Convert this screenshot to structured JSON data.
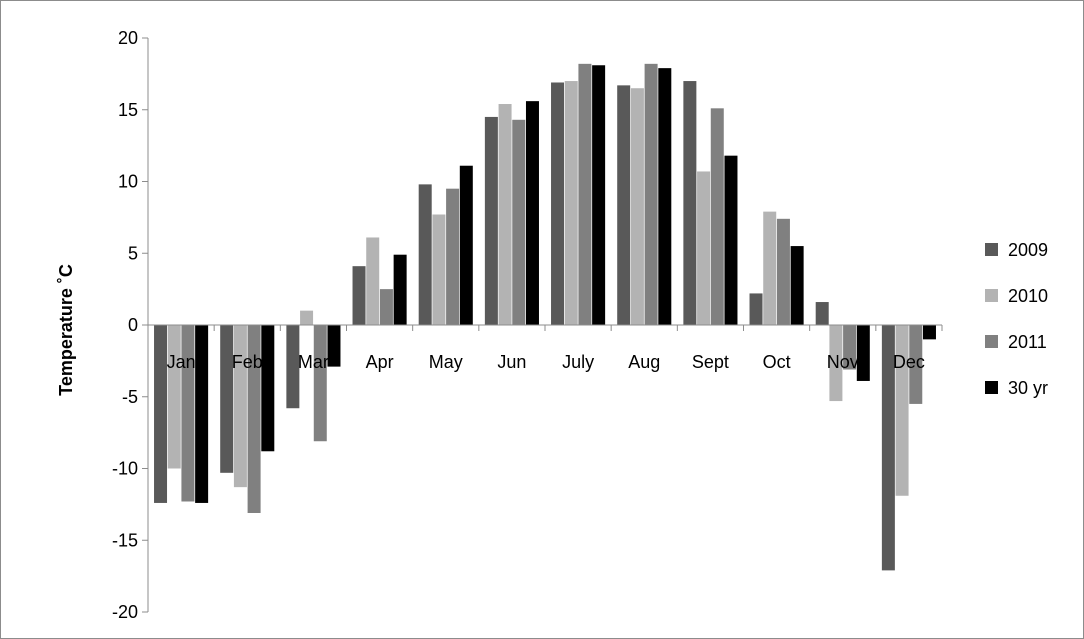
{
  "chart_data": {
    "type": "bar",
    "title": "",
    "xlabel": "",
    "ylabel": "Temperature ˚C",
    "ylim": [
      -20,
      20
    ],
    "yticks": [
      20,
      15,
      10,
      5,
      0,
      -5,
      -10,
      -15,
      -20
    ],
    "ytick_labels": [
      "20",
      "15",
      "10",
      "5",
      "0",
      "-5",
      "-10",
      "-15",
      "-20"
    ],
    "categories": [
      "Jan",
      "Feb",
      "Mar",
      "Apr",
      "May",
      "Jun",
      "July",
      "Aug",
      "Sept",
      "Oct",
      "Nov",
      "Dec"
    ],
    "grid": false,
    "legend_position": "right",
    "series": [
      {
        "name": "2009",
        "color": "#595959",
        "values": [
          -12.4,
          -10.3,
          -5.8,
          4.1,
          9.8,
          14.5,
          16.9,
          16.7,
          17.0,
          2.2,
          1.6,
          -17.1
        ]
      },
      {
        "name": "2010",
        "color": "#b3b3b3",
        "values": [
          -10.0,
          -11.3,
          1.0,
          6.1,
          7.7,
          15.4,
          17.0,
          16.5,
          10.7,
          7.9,
          -5.3,
          -11.9
        ]
      },
      {
        "name": "2011",
        "color": "#808080",
        "values": [
          -12.3,
          -13.1,
          -8.1,
          2.5,
          9.5,
          14.3,
          18.2,
          18.2,
          15.1,
          7.4,
          -3.1,
          -5.5
        ]
      },
      {
        "name": "30 yr",
        "color": "#000000",
        "values": [
          -12.4,
          -8.8,
          -2.9,
          4.9,
          11.1,
          15.6,
          18.1,
          17.9,
          11.8,
          5.5,
          -3.9,
          -1.0
        ]
      }
    ]
  }
}
